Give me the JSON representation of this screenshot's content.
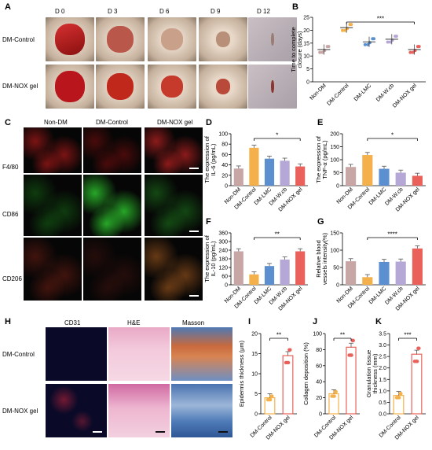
{
  "panels": {
    "A": {
      "label": "A",
      "days": [
        "D 0",
        "D 3",
        "D 6",
        "D 9",
        "D 12"
      ],
      "rows": [
        "DM-Control",
        "DM-NOX gel"
      ]
    },
    "B": {
      "label": "B",
      "chart_data": {
        "type": "scatter",
        "ylabel": "Time to complete closure (days)",
        "categories": [
          "Non-DM",
          "DM-Control",
          "DM-LMC",
          "DM-W.cb",
          "DM-NOX gel"
        ],
        "values": [
          12.5,
          21,
          15.5,
          16.5,
          12.5
        ],
        "ylim": [
          0,
          25
        ],
        "yticks": [
          0,
          5,
          10,
          15,
          20,
          25
        ],
        "colors": [
          "#c9a6a6",
          "#f4b04a",
          "#5b8fcf",
          "#b5a7d6",
          "#e9615a"
        ],
        "significance": "***"
      }
    },
    "C": {
      "label": "C",
      "cols": [
        "Non-DM",
        "DM-Control",
        "DM-NOX gel"
      ],
      "rows": [
        "F4/80",
        "CD86",
        "CD206"
      ]
    },
    "D": {
      "label": "D",
      "chart_data": {
        "type": "bar",
        "ylabel": "The expression of IL-6 (pg/mL)",
        "categories": [
          "Non-DM",
          "DM-Control",
          "DM-LMC",
          "DM-W.cb",
          "DM-NOX gel"
        ],
        "values": [
          33,
          73,
          52,
          48,
          37
        ],
        "ylim": [
          0,
          100
        ],
        "yticks": [
          0,
          20,
          40,
          60,
          80,
          100
        ],
        "significance": "*"
      }
    },
    "E": {
      "label": "E",
      "chart_data": {
        "type": "bar",
        "ylabel": "The expression of TNF-α (pg/mL)",
        "categories": [
          "Non-DM",
          "DM-Control",
          "DM-LMC",
          "DM-W.cb",
          "DM-NOX gel"
        ],
        "values": [
          72,
          118,
          65,
          50,
          38
        ],
        "ylim": [
          0,
          200
        ],
        "yticks": [
          0,
          50,
          100,
          150,
          200
        ],
        "significance": "*"
      }
    },
    "F": {
      "label": "F",
      "chart_data": {
        "type": "bar",
        "ylabel": "The expression of IL-10 (pg/mL)",
        "categories": [
          "Non-DM",
          "DM-Control",
          "DM-LMC",
          "DM-W.cb",
          "DM-NOX gel"
        ],
        "values": [
          232,
          72,
          130,
          175,
          232
        ],
        "ylim": [
          0,
          360
        ],
        "yticks": [
          0,
          60,
          120,
          180,
          240,
          300,
          360
        ],
        "significance": "**"
      }
    },
    "G": {
      "label": "G",
      "chart_data": {
        "type": "bar",
        "ylabel": "Relative blood vessels intensity(%)",
        "categories": [
          "Non-DM",
          "DM-Control",
          "DM-LMC",
          "DM-W.cb",
          "DM-NOX gel"
        ],
        "values": [
          68,
          22,
          66,
          67,
          105
        ],
        "ylim": [
          0,
          150
        ],
        "yticks": [
          0,
          50,
          100,
          150
        ],
        "significance": "****"
      }
    },
    "H": {
      "label": "H",
      "cols": [
        "CD31",
        "H&E",
        "Masson"
      ],
      "rows": [
        "DM-Control",
        "DM-NOX gel"
      ]
    },
    "I": {
      "label": "I",
      "chart_data": {
        "type": "bar",
        "ylabel": "Epidermis thickness (μm)",
        "categories": [
          "DM-Control",
          "DM-NOX gel"
        ],
        "values": [
          4,
          14.5
        ],
        "ylim": [
          0,
          20
        ],
        "yticks": [
          0,
          5,
          10,
          15,
          20
        ],
        "significance": "**"
      }
    },
    "J": {
      "label": "J",
      "chart_data": {
        "type": "bar",
        "ylabel": "Collagen deposition (%)",
        "categories": [
          "DM-Control",
          "DM-NOX gel"
        ],
        "values": [
          25,
          83
        ],
        "ylim": [
          0,
          100
        ],
        "yticks": [
          0,
          20,
          40,
          60,
          80,
          100
        ],
        "significance": "**"
      }
    },
    "K": {
      "label": "K",
      "chart_data": {
        "type": "bar",
        "ylabel": "Granulation tissue thickness (mm)",
        "categories": [
          "DM-Control",
          "DM-NOX gel"
        ],
        "values": [
          0.8,
          2.6
        ],
        "ylim": [
          0,
          3.5
        ],
        "yticks": [
          0,
          0.5,
          1.0,
          1.5,
          2.0,
          2.5,
          3.0,
          3.5
        ],
        "significance": "***"
      }
    }
  },
  "colors": {
    "nondm": "#c9a6a6",
    "control": "#f4b04a",
    "lmc": "#5b8fcf",
    "wcb": "#b5a7d6",
    "nox": "#e9615a"
  }
}
